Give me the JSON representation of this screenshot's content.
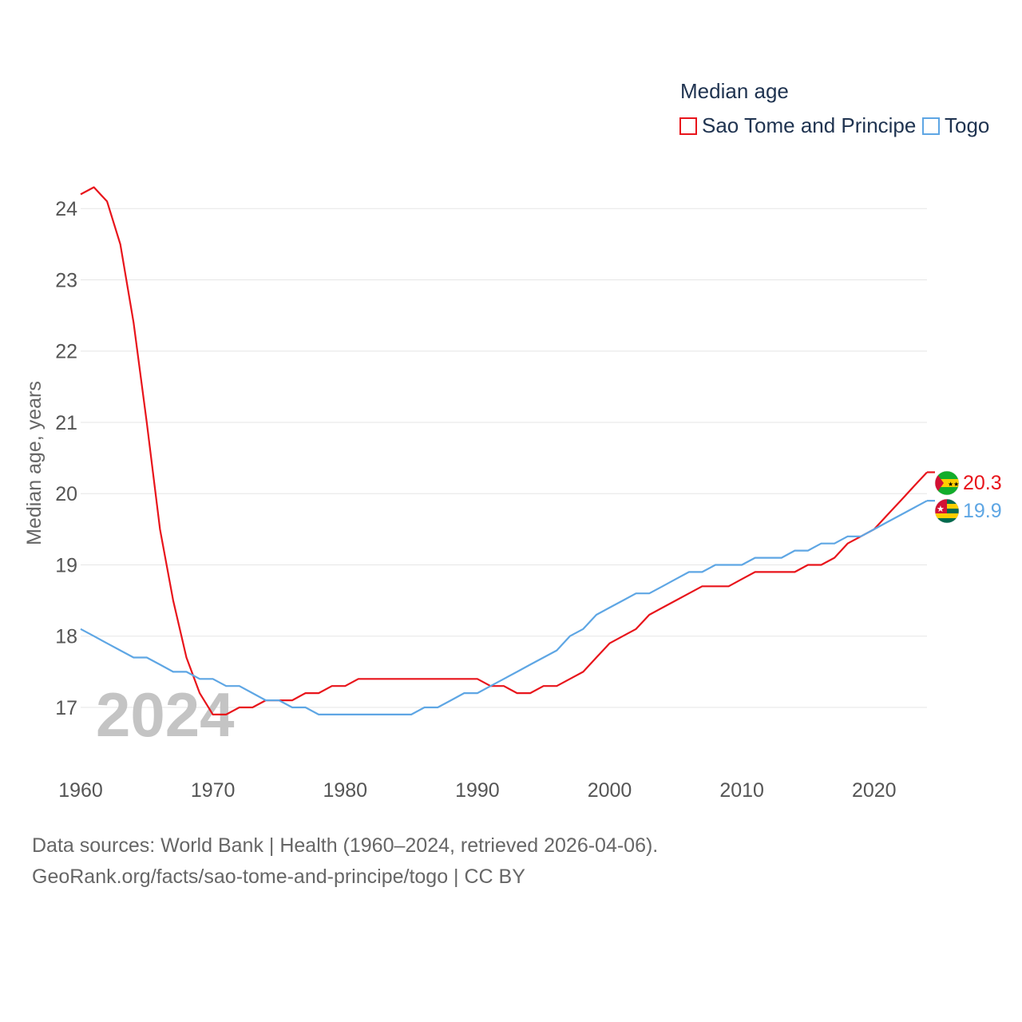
{
  "legend": {
    "title": "Median age",
    "items": [
      {
        "label": "Sao Tome and Principe",
        "color": "#e8141b"
      },
      {
        "label": "Togo",
        "color": "#5ea6e4"
      }
    ]
  },
  "watermark_year": "2024",
  "footer": {
    "line1": "Data sources: World Bank | Health (1960–2024, retrieved 2026-04-06).",
    "line2": "GeoRank.org/facts/sao-tome-and-principe/togo | CC BY"
  },
  "chart_data": {
    "type": "line",
    "title": "Median age",
    "xlabel": "",
    "ylabel": "Median age, years",
    "xlim": [
      1960,
      2024
    ],
    "ylim": [
      16.35,
      24.35
    ],
    "x_ticks": [
      1960,
      1970,
      1980,
      1990,
      2000,
      2010,
      2020
    ],
    "y_ticks": [
      17,
      18,
      19,
      20,
      21,
      22,
      23,
      24
    ],
    "grid": true,
    "legend_position": "top-right",
    "x": [
      1960,
      1961,
      1962,
      1963,
      1964,
      1965,
      1966,
      1967,
      1968,
      1969,
      1970,
      1971,
      1972,
      1973,
      1974,
      1975,
      1976,
      1977,
      1978,
      1979,
      1980,
      1981,
      1982,
      1983,
      1984,
      1985,
      1986,
      1987,
      1988,
      1989,
      1990,
      1991,
      1992,
      1993,
      1994,
      1995,
      1996,
      1997,
      1998,
      1999,
      2000,
      2001,
      2002,
      2003,
      2004,
      2005,
      2006,
      2007,
      2008,
      2009,
      2010,
      2011,
      2012,
      2013,
      2014,
      2015,
      2016,
      2017,
      2018,
      2019,
      2020,
      2021,
      2022,
      2023,
      2024
    ],
    "series": [
      {
        "name": "Sao Tome and Principe",
        "color": "#e8141b",
        "end_label": "20.3",
        "flag": "sao-tome-and-principe-flag",
        "values": [
          24.2,
          24.3,
          24.1,
          23.5,
          22.4,
          21.0,
          19.5,
          18.5,
          17.7,
          17.2,
          16.9,
          16.9,
          17.0,
          17.0,
          17.1,
          17.1,
          17.1,
          17.2,
          17.2,
          17.3,
          17.3,
          17.4,
          17.4,
          17.4,
          17.4,
          17.4,
          17.4,
          17.4,
          17.4,
          17.4,
          17.4,
          17.3,
          17.3,
          17.2,
          17.2,
          17.3,
          17.3,
          17.4,
          17.5,
          17.7,
          17.9,
          18.0,
          18.1,
          18.3,
          18.4,
          18.5,
          18.6,
          18.7,
          18.7,
          18.7,
          18.8,
          18.9,
          18.9,
          18.9,
          18.9,
          19.0,
          19.0,
          19.1,
          19.3,
          19.4,
          19.5,
          19.7,
          19.9,
          20.1,
          20.3
        ]
      },
      {
        "name": "Togo",
        "color": "#5ea6e4",
        "end_label": "19.9",
        "flag": "togo-flag",
        "values": [
          18.1,
          18.0,
          17.9,
          17.8,
          17.7,
          17.7,
          17.6,
          17.5,
          17.5,
          17.4,
          17.4,
          17.3,
          17.3,
          17.2,
          17.1,
          17.1,
          17.0,
          17.0,
          16.9,
          16.9,
          16.9,
          16.9,
          16.9,
          16.9,
          16.9,
          16.9,
          17.0,
          17.0,
          17.1,
          17.2,
          17.2,
          17.3,
          17.4,
          17.5,
          17.6,
          17.7,
          17.8,
          18.0,
          18.1,
          18.3,
          18.4,
          18.5,
          18.6,
          18.6,
          18.7,
          18.8,
          18.9,
          18.9,
          19.0,
          19.0,
          19.0,
          19.1,
          19.1,
          19.1,
          19.2,
          19.2,
          19.3,
          19.3,
          19.4,
          19.4,
          19.5,
          19.6,
          19.7,
          19.8,
          19.9
        ]
      }
    ]
  }
}
